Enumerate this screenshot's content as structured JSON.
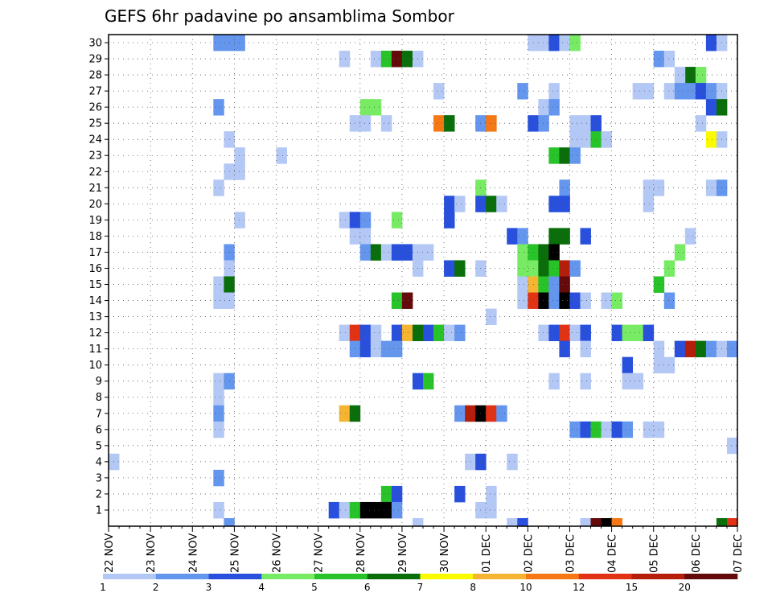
{
  "chart_data": {
    "type": "heatmap",
    "title": "GEFS 6hr padavine po ansamblima Sombor",
    "x_tick_labels": [
      "22 NOV",
      "23 NOV",
      "24 NOV",
      "25 NOV",
      "26 NOV",
      "27 NOV",
      "28 NOV",
      "29 NOV",
      "30 NOV",
      "01 DEC",
      "02 DEC",
      "03 DEC",
      "04 DEC",
      "05 DEC",
      "06 DEC",
      "07 DEC"
    ],
    "y_tick_labels": [
      "1",
      "2",
      "3",
      "4",
      "5",
      "6",
      "7",
      "8",
      "9",
      "10",
      "11",
      "12",
      "13",
      "14",
      "15",
      "16",
      "17",
      "18",
      "19",
      "20",
      "21",
      "22",
      "23",
      "24",
      "25",
      "26",
      "27",
      "28",
      "29",
      "30"
    ],
    "x_range_days": [
      0,
      15
    ],
    "steps_per_day": 4,
    "ensemble_members": 30,
    "grid": true,
    "colorbar": {
      "position": "bottom",
      "levels": [
        "1",
        "2",
        "3",
        "4",
        "5",
        "6",
        "7",
        "8",
        "10",
        "12",
        "15",
        "20"
      ],
      "colors": [
        "#b4c8f5",
        "#6496ee",
        "#2850dc",
        "#78eb64",
        "#28c328",
        "#0a6e0a",
        "#fafa00",
        "#f5b432",
        "#f57814",
        "#e13214",
        "#b41e0a",
        "#640a0a"
      ]
    },
    "cells": [
      [
        30,
        10,
        2
      ],
      [
        30,
        11,
        2
      ],
      [
        30,
        12,
        2
      ],
      [
        30,
        40,
        1
      ],
      [
        30,
        41,
        1
      ],
      [
        30,
        42,
        3
      ],
      [
        30,
        43,
        1
      ],
      [
        30,
        44,
        4
      ],
      [
        30,
        57,
        3
      ],
      [
        30,
        58,
        1
      ],
      [
        29,
        22,
        1
      ],
      [
        29,
        25,
        1
      ],
      [
        29,
        26,
        5
      ],
      [
        29,
        27,
        12
      ],
      [
        29,
        28,
        6
      ],
      [
        29,
        29,
        1
      ],
      [
        29,
        52,
        2
      ],
      [
        29,
        53,
        1
      ],
      [
        28,
        55,
        6
      ],
      [
        28,
        56,
        4
      ],
      [
        28,
        54,
        1
      ],
      [
        27,
        31,
        1
      ],
      [
        27,
        39,
        2
      ],
      [
        27,
        42,
        1
      ],
      [
        27,
        50,
        1
      ],
      [
        27,
        51,
        1
      ],
      [
        27,
        53,
        1
      ],
      [
        27,
        54,
        2
      ],
      [
        27,
        55,
        2
      ],
      [
        27,
        56,
        3
      ],
      [
        27,
        57,
        2
      ],
      [
        27,
        58,
        1
      ],
      [
        26,
        10,
        2
      ],
      [
        26,
        24,
        4
      ],
      [
        26,
        25,
        4
      ],
      [
        26,
        41,
        1
      ],
      [
        26,
        42,
        2
      ],
      [
        26,
        57,
        3
      ],
      [
        26,
        58,
        6
      ],
      [
        25,
        23,
        1
      ],
      [
        25,
        24,
        1
      ],
      [
        25,
        26,
        1
      ],
      [
        25,
        31,
        9
      ],
      [
        25,
        32,
        6
      ],
      [
        25,
        35,
        2
      ],
      [
        25,
        36,
        9
      ],
      [
        25,
        40,
        3
      ],
      [
        25,
        41,
        2
      ],
      [
        25,
        44,
        1
      ],
      [
        25,
        45,
        1
      ],
      [
        25,
        46,
        3
      ],
      [
        25,
        56,
        1
      ],
      [
        24,
        11,
        1
      ],
      [
        24,
        44,
        1
      ],
      [
        24,
        45,
        1
      ],
      [
        24,
        46,
        5
      ],
      [
        24,
        47,
        1
      ],
      [
        24,
        57,
        7
      ],
      [
        24,
        58,
        1
      ],
      [
        23,
        12,
        1
      ],
      [
        23,
        16,
        1
      ],
      [
        23,
        42,
        5
      ],
      [
        23,
        43,
        6
      ],
      [
        23,
        44,
        2
      ],
      [
        22,
        11,
        1
      ],
      [
        22,
        12,
        1
      ],
      [
        21,
        10,
        1
      ],
      [
        21,
        35,
        4
      ],
      [
        21,
        43,
        2
      ],
      [
        21,
        51,
        1
      ],
      [
        21,
        52,
        1
      ],
      [
        21,
        57,
        1
      ],
      [
        21,
        58,
        2
      ],
      [
        20,
        32,
        3
      ],
      [
        20,
        33,
        1
      ],
      [
        20,
        35,
        3
      ],
      [
        20,
        36,
        6
      ],
      [
        20,
        37,
        1
      ],
      [
        20,
        42,
        3
      ],
      [
        20,
        43,
        3
      ],
      [
        20,
        51,
        1
      ],
      [
        19,
        12,
        1
      ],
      [
        19,
        22,
        1
      ],
      [
        19,
        23,
        3
      ],
      [
        19,
        24,
        2
      ],
      [
        19,
        27,
        4
      ],
      [
        19,
        32,
        3
      ],
      [
        18,
        23,
        1
      ],
      [
        18,
        24,
        1
      ],
      [
        18,
        38,
        3
      ],
      [
        18,
        39,
        2
      ],
      [
        18,
        42,
        6
      ],
      [
        18,
        43,
        6
      ],
      [
        18,
        45,
        3
      ],
      [
        18,
        55,
        1
      ],
      [
        17,
        11,
        2
      ],
      [
        17,
        24,
        2
      ],
      [
        17,
        25,
        6
      ],
      [
        17,
        26,
        1
      ],
      [
        17,
        27,
        3
      ],
      [
        17,
        28,
        3
      ],
      [
        17,
        29,
        1
      ],
      [
        17,
        30,
        1
      ],
      [
        17,
        39,
        4
      ],
      [
        17,
        40,
        5
      ],
      [
        17,
        41,
        6
      ],
      [
        17,
        42,
        13
      ],
      [
        17,
        54,
        4
      ],
      [
        16,
        11,
        1
      ],
      [
        16,
        29,
        1
      ],
      [
        16,
        32,
        3
      ],
      [
        16,
        33,
        6
      ],
      [
        16,
        35,
        1
      ],
      [
        16,
        39,
        4
      ],
      [
        16,
        40,
        4
      ],
      [
        16,
        41,
        6
      ],
      [
        16,
        42,
        5
      ],
      [
        16,
        43,
        11
      ],
      [
        16,
        44,
        2
      ],
      [
        16,
        53,
        4
      ],
      [
        15,
        10,
        1
      ],
      [
        15,
        11,
        6
      ],
      [
        15,
        39,
        1
      ],
      [
        15,
        40,
        8
      ],
      [
        15,
        41,
        5
      ],
      [
        15,
        42,
        2
      ],
      [
        15,
        43,
        12
      ],
      [
        15,
        52,
        5
      ],
      [
        14,
        10,
        1
      ],
      [
        14,
        11,
        1
      ],
      [
        14,
        27,
        5
      ],
      [
        14,
        28,
        12
      ],
      [
        14,
        39,
        1
      ],
      [
        14,
        40,
        10
      ],
      [
        14,
        41,
        13
      ],
      [
        14,
        42,
        2
      ],
      [
        14,
        43,
        13
      ],
      [
        14,
        44,
        3
      ],
      [
        14,
        45,
        1
      ],
      [
        14,
        47,
        1
      ],
      [
        14,
        48,
        4
      ],
      [
        14,
        53,
        2
      ],
      [
        13,
        36,
        1
      ],
      [
        12,
        22,
        1
      ],
      [
        12,
        23,
        10
      ],
      [
        12,
        24,
        3
      ],
      [
        12,
        25,
        1
      ],
      [
        12,
        27,
        3
      ],
      [
        12,
        28,
        8
      ],
      [
        12,
        29,
        6
      ],
      [
        12,
        30,
        3
      ],
      [
        12,
        31,
        5
      ],
      [
        12,
        32,
        1
      ],
      [
        12,
        33,
        2
      ],
      [
        12,
        41,
        1
      ],
      [
        12,
        42,
        3
      ],
      [
        12,
        43,
        10
      ],
      [
        12,
        44,
        1
      ],
      [
        12,
        45,
        3
      ],
      [
        12,
        48,
        3
      ],
      [
        12,
        49,
        4
      ],
      [
        12,
        50,
        4
      ],
      [
        12,
        51,
        3
      ],
      [
        11,
        23,
        2
      ],
      [
        11,
        24,
        3
      ],
      [
        11,
        25,
        1
      ],
      [
        11,
        26,
        2
      ],
      [
        11,
        27,
        2
      ],
      [
        11,
        43,
        3
      ],
      [
        11,
        45,
        1
      ],
      [
        11,
        52,
        1
      ],
      [
        11,
        54,
        3
      ],
      [
        11,
        55,
        11
      ],
      [
        11,
        56,
        6
      ],
      [
        11,
        57,
        2
      ],
      [
        11,
        58,
        1
      ],
      [
        11,
        59,
        2
      ],
      [
        10,
        49,
        3
      ],
      [
        10,
        52,
        1
      ],
      [
        10,
        53,
        1
      ],
      [
        9,
        10,
        1
      ],
      [
        9,
        11,
        2
      ],
      [
        9,
        29,
        3
      ],
      [
        9,
        30,
        5
      ],
      [
        9,
        42,
        1
      ],
      [
        9,
        45,
        1
      ],
      [
        9,
        49,
        1
      ],
      [
        9,
        50,
        1
      ],
      [
        8,
        10,
        1
      ],
      [
        7,
        10,
        2
      ],
      [
        7,
        22,
        8
      ],
      [
        7,
        23,
        6
      ],
      [
        7,
        33,
        2
      ],
      [
        7,
        34,
        11
      ],
      [
        7,
        35,
        13
      ],
      [
        7,
        36,
        10
      ],
      [
        7,
        37,
        2
      ],
      [
        6,
        10,
        1
      ],
      [
        6,
        44,
        2
      ],
      [
        6,
        45,
        3
      ],
      [
        6,
        46,
        5
      ],
      [
        6,
        47,
        1
      ],
      [
        6,
        48,
        3
      ],
      [
        6,
        49,
        2
      ],
      [
        6,
        51,
        1
      ],
      [
        6,
        52,
        1
      ],
      [
        5,
        59,
        1
      ],
      [
        4,
        0,
        1
      ],
      [
        4,
        34,
        1
      ],
      [
        4,
        35,
        3
      ],
      [
        4,
        38,
        1
      ],
      [
        3,
        10,
        2
      ],
      [
        2,
        26,
        5
      ],
      [
        2,
        27,
        3
      ],
      [
        2,
        33,
        3
      ],
      [
        2,
        36,
        1
      ],
      [
        1,
        10,
        1
      ],
      [
        1,
        21,
        3
      ],
      [
        1,
        22,
        1
      ],
      [
        1,
        23,
        5
      ],
      [
        1,
        24,
        13
      ],
      [
        1,
        25,
        13
      ],
      [
        1,
        26,
        13
      ],
      [
        1,
        27,
        2
      ],
      [
        1,
        35,
        1
      ],
      [
        1,
        36,
        1
      ],
      [
        0,
        11,
        2
      ],
      [
        0,
        29,
        1
      ],
      [
        0,
        38,
        1
      ],
      [
        0,
        39,
        3
      ],
      [
        0,
        45,
        1
      ],
      [
        0,
        46,
        12
      ],
      [
        0,
        47,
        13
      ],
      [
        0,
        48,
        9
      ],
      [
        0,
        58,
        6
      ],
      [
        0,
        59,
        10
      ]
    ]
  }
}
